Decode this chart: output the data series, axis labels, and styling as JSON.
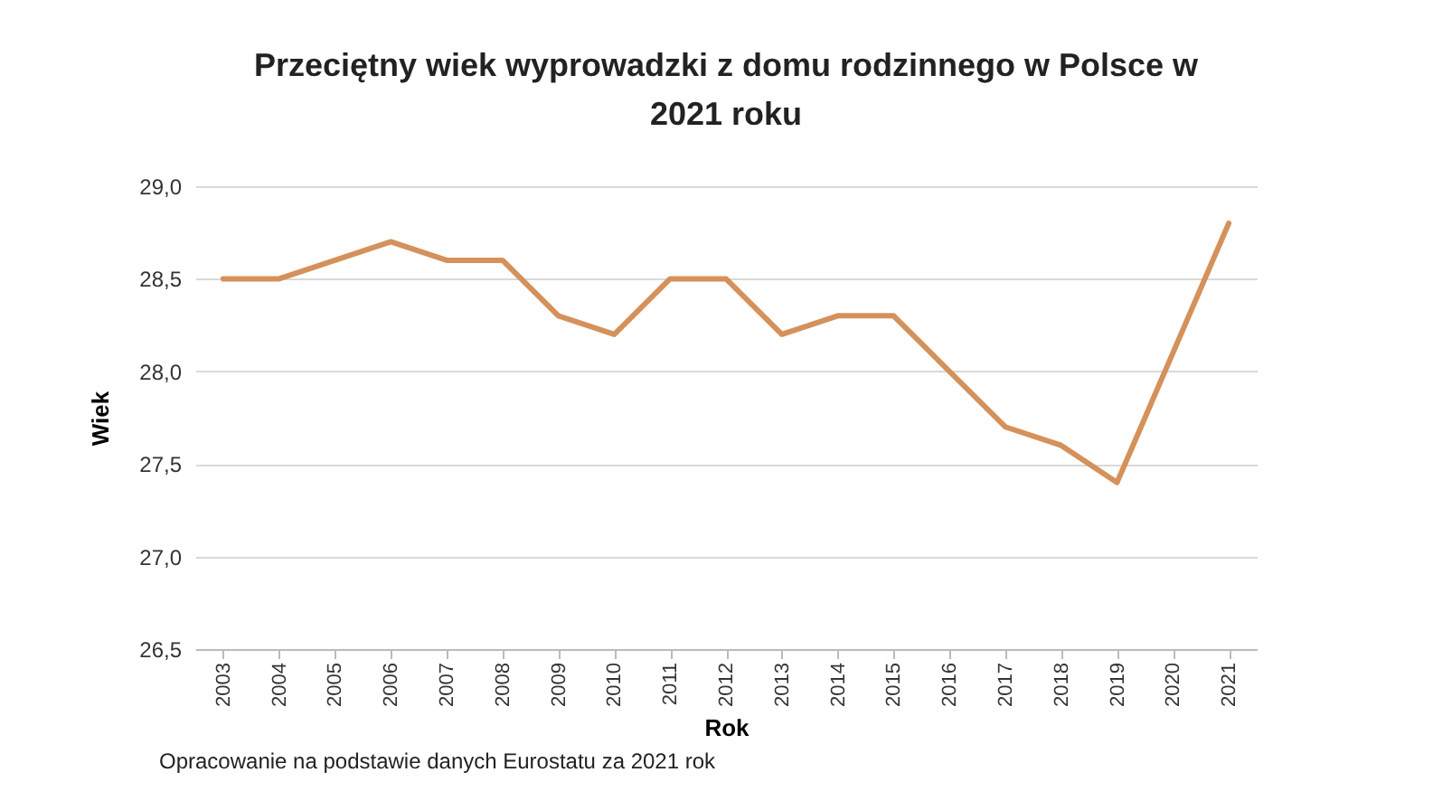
{
  "chart_data": {
    "type": "line",
    "title": "Przeciętny wiek wyprowadzki z domu rodzinnego w Polsce w 2021 roku",
    "xlabel": "Rok",
    "ylabel": "Wiek",
    "categories": [
      "2003",
      "2004",
      "2005",
      "2006",
      "2007",
      "2008",
      "2009",
      "2010",
      "2011",
      "2012",
      "2013",
      "2014",
      "2015",
      "2016",
      "2017",
      "2018",
      "2019",
      "2020",
      "2021"
    ],
    "series": [
      {
        "color": "#d5915b",
        "values": [
          28.5,
          28.5,
          28.6,
          28.7,
          28.6,
          28.6,
          28.3,
          28.2,
          28.5,
          28.5,
          28.2,
          28.3,
          28.3,
          28.0,
          27.7,
          27.6,
          27.4,
          28.1,
          28.8
        ]
      }
    ],
    "ylim": [
      26.5,
      29.0
    ],
    "yticks": [
      {
        "value": 26.5,
        "label": "26,5"
      },
      {
        "value": 27.0,
        "label": "27,0"
      },
      {
        "value": 27.5,
        "label": "27,5"
      },
      {
        "value": 28.0,
        "label": "28,0"
      },
      {
        "value": 28.5,
        "label": "28,5"
      },
      {
        "value": 29.0,
        "label": "29,0"
      }
    ],
    "grid": "y",
    "legend": false,
    "annotations": [
      "Opracowanie na podstawie danych Eurostatu za 2021 rok"
    ]
  }
}
